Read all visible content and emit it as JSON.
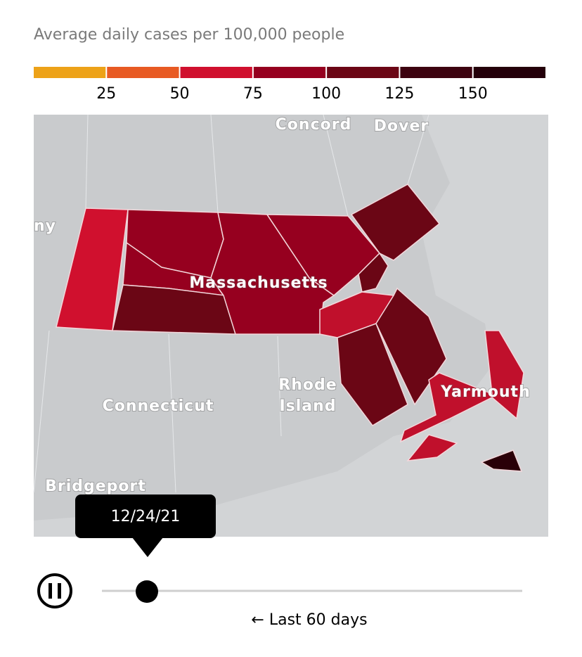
{
  "header": {
    "title": "Average daily cases per 100,000 people"
  },
  "legend": {
    "colors": [
      "#eda218",
      "#e85a23",
      "#d0102e",
      "#96001f",
      "#6b0615",
      "#3d0310",
      "#24000a"
    ],
    "ticks": [
      25,
      50,
      75,
      100,
      125,
      150
    ]
  },
  "map": {
    "labels": [
      "Concord",
      "Dover",
      "ny",
      "Massachusetts",
      "Rhode",
      "Island",
      "Connecticut",
      "Yarmouth",
      "Bridgeport"
    ]
  },
  "slider": {
    "date": "12/24/21",
    "caption": "← Last 60 days"
  }
}
